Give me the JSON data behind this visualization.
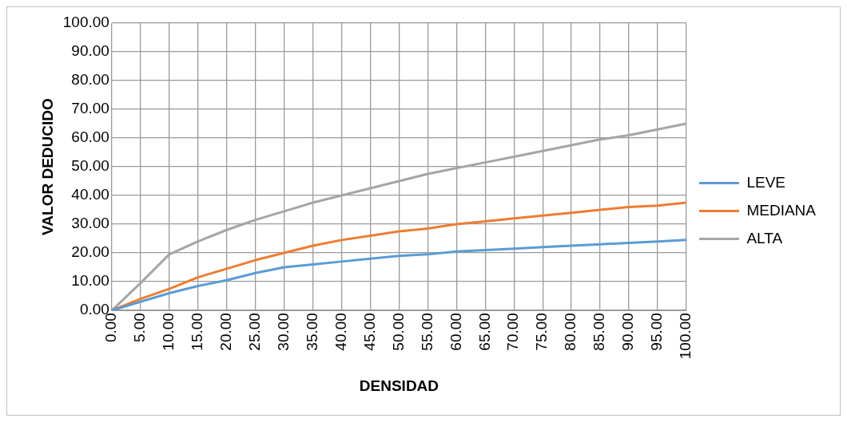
{
  "chart_data": {
    "type": "line",
    "xlabel": "DENSIDAD",
    "ylabel": "VALOR DEDUCIDO",
    "x": [
      0,
      5,
      10,
      15,
      20,
      25,
      30,
      35,
      40,
      45,
      50,
      55,
      60,
      65,
      70,
      75,
      80,
      85,
      90,
      95,
      100
    ],
    "series": [
      {
        "name": "LEVE",
        "color": "#5b9bd5",
        "values": [
          0,
          3,
          6,
          8.5,
          10.5,
          13,
          15,
          16,
          17,
          18,
          19,
          19.5,
          20.5,
          21,
          21.5,
          22,
          22.5,
          23,
          23.5,
          24,
          24.5
        ]
      },
      {
        "name": "MEDIANA",
        "color": "#ed7d31",
        "values": [
          0,
          4,
          7.5,
          11.5,
          14.5,
          17.5,
          20,
          22.5,
          24.5,
          26,
          27.5,
          28.5,
          30,
          31,
          32,
          33,
          34,
          35,
          36,
          36.5,
          37.5
        ]
      },
      {
        "name": "ALTA",
        "color": "#a5a5a5",
        "values": [
          0,
          9.5,
          19.5,
          24,
          28,
          31.5,
          34.5,
          37.5,
          40,
          42.5,
          45,
          47.5,
          49.5,
          51.5,
          53.5,
          55.5,
          57.5,
          59.5,
          61,
          63,
          65
        ]
      }
    ],
    "xlim": [
      0,
      100
    ],
    "ylim": [
      0,
      100
    ],
    "xticks": [
      {
        "value": 0,
        "label": "0.00"
      },
      {
        "value": 5,
        "label": "5.00"
      },
      {
        "value": 10,
        "label": "10.00"
      },
      {
        "value": 15,
        "label": "15.00"
      },
      {
        "value": 20,
        "label": "20.00"
      },
      {
        "value": 25,
        "label": "25.00"
      },
      {
        "value": 30,
        "label": "30.00"
      },
      {
        "value": 35,
        "label": "35.00"
      },
      {
        "value": 40,
        "label": "40.00"
      },
      {
        "value": 45,
        "label": "45.00"
      },
      {
        "value": 50,
        "label": "50.00"
      },
      {
        "value": 55,
        "label": "55.00"
      },
      {
        "value": 60,
        "label": "60.00"
      },
      {
        "value": 65,
        "label": "65.00"
      },
      {
        "value": 70,
        "label": "70.00"
      },
      {
        "value": 75,
        "label": "75.00"
      },
      {
        "value": 80,
        "label": "80.00"
      },
      {
        "value": 85,
        "label": "85.00"
      },
      {
        "value": 90,
        "label": "90.00"
      },
      {
        "value": 95,
        "label": "95.00"
      },
      {
        "value": 100,
        "label": "100.00"
      }
    ],
    "yticks": [
      {
        "value": 0,
        "label": "0.00"
      },
      {
        "value": 10,
        "label": "10.00"
      },
      {
        "value": 20,
        "label": "20.00"
      },
      {
        "value": 30,
        "label": "30.00"
      },
      {
        "value": 40,
        "label": "40.00"
      },
      {
        "value": 50,
        "label": "50.00"
      },
      {
        "value": 60,
        "label": "60.00"
      },
      {
        "value": 70,
        "label": "70.00"
      },
      {
        "value": 80,
        "label": "80.00"
      },
      {
        "value": 90,
        "label": "90.00"
      },
      {
        "value": 100,
        "label": "100.00"
      }
    ],
    "grid": true,
    "legend": "right",
    "marker": "none",
    "line_style": "solid"
  }
}
